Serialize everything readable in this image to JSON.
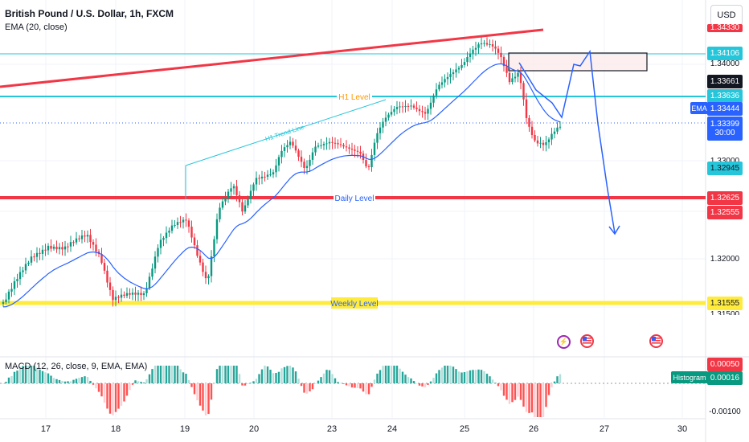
{
  "header": {
    "symbol_title": "British Pound / U.S. Dollar, 1h, FXCM",
    "ema_indicator": "EMA (20, close)",
    "macd_indicator": "MACD (12, 26, close, 9, EMA, EMA)",
    "currency_button": "USD"
  },
  "price_axis": {
    "top_cut": "1.34330",
    "resistance_top": "1.34106",
    "box_label": "1.34000",
    "resistance_mid": "1.33661",
    "h1_level": "1.33636",
    "ema_tag": "EMA",
    "ema_value": "1.33444",
    "last_price": "1.33399",
    "countdown": "30:00",
    "hidden_mid": "1.33000",
    "support_1": "1.32945",
    "daily_level": "1.32625",
    "daily_low": "1.32555",
    "tick_1": "1.32000",
    "weekly_level": "1.31555",
    "weekly_below": "1.31500"
  },
  "macd_axis": {
    "macd_value": "0.00050",
    "hist_tag": "Histogram",
    "hist_value": "0.00016",
    "tick_low": "-0.00100"
  },
  "annotations": {
    "h1_level": "H1 Level",
    "daily_level": "Daily Level",
    "weekly_level": "Weekly Level",
    "h1_trend_line": "H1 Trend Line"
  },
  "time_axis": [
    "17",
    "18",
    "19",
    "20",
    "23",
    "24",
    "25",
    "26",
    "27",
    "30"
  ],
  "events": {
    "flash_icon": "⚡"
  },
  "colors": {
    "up": "#089981",
    "down": "#f23645",
    "ema": "#2962ff",
    "h1": "#26c6da",
    "daily": "#f23645",
    "weekly": "#ffeb3b",
    "trend_red": "#f23645"
  }
}
